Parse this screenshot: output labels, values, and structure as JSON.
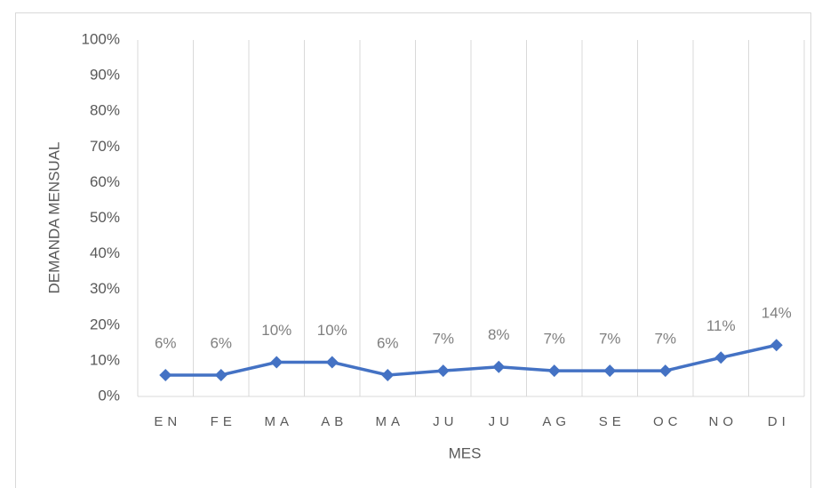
{
  "chart_data": {
    "type": "line",
    "categories": [
      "EN",
      "FE",
      "MA",
      "AB",
      "MA",
      "JU",
      "JU",
      "AG",
      "SE",
      "OC",
      "NO",
      "DI"
    ],
    "series": [
      {
        "name": "DEMANDA MENSUAL",
        "color": "#4472c4",
        "values": [
          6,
          6,
          9.6,
          9.6,
          6,
          7.2,
          8.3,
          7.2,
          7.2,
          7.2,
          10.9,
          14.4
        ],
        "value_labels": [
          "6%",
          "6%",
          "10%",
          "10%",
          "6%",
          "7%",
          "8%",
          "7%",
          "7%",
          "7%",
          "11%",
          "14%"
        ]
      }
    ],
    "x_label": "MES",
    "y_label": "DEMANDA MENSUAL",
    "ylim": [
      0,
      100
    ],
    "yticks": [
      {
        "value": 0,
        "label": "0%"
      },
      {
        "value": 10,
        "label": "10%"
      },
      {
        "value": 20,
        "label": "20%"
      },
      {
        "value": 30,
        "label": "30%"
      },
      {
        "value": 40,
        "label": "40%"
      },
      {
        "value": 50,
        "label": "50%"
      },
      {
        "value": 60,
        "label": "60%"
      },
      {
        "value": 70,
        "label": "70%"
      },
      {
        "value": 80,
        "label": "80%"
      },
      {
        "value": 90,
        "label": "90%"
      },
      {
        "value": 100,
        "label": "100%"
      }
    ]
  }
}
